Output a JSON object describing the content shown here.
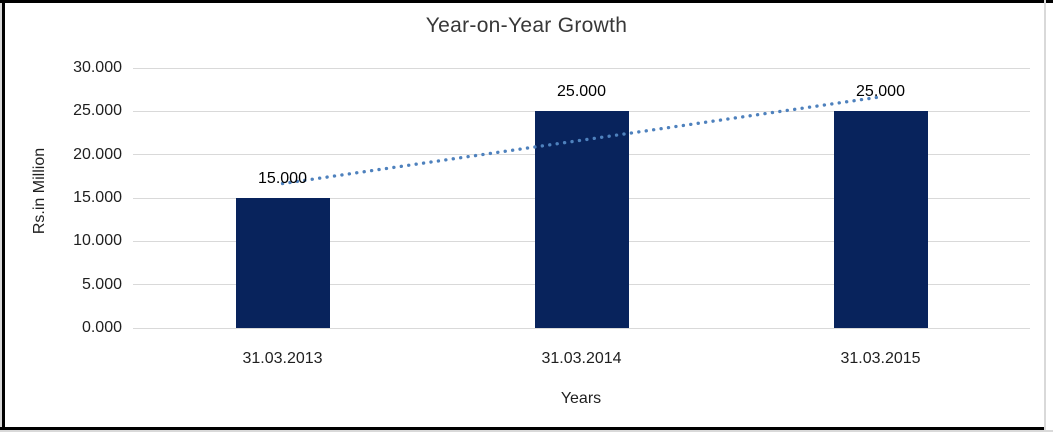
{
  "window": {
    "border_color": "#000000",
    "edge_color": "#d9d9d9",
    "background": "#ffffff"
  },
  "chart_data": {
    "type": "bar",
    "title": "Year-on-Year Growth",
    "xlabel": "Years",
    "ylabel": "Rs.in Million",
    "categories": [
      "31.03.2013",
      "31.03.2014",
      "31.03.2015"
    ],
    "values": [
      15000,
      25000,
      25000
    ],
    "data_labels": [
      "15.000",
      "25.000",
      "25.000"
    ],
    "y_tick_labels": [
      "0.000",
      "5.000",
      "10.000",
      "15.000",
      "20.000",
      "25.000",
      "30.000"
    ],
    "y_tick_values": [
      0,
      5000,
      10000,
      15000,
      20000,
      25000,
      30000
    ],
    "ylim": [
      0,
      30000
    ],
    "grid": true,
    "legend": "none",
    "bar_color": "#08235C",
    "gridline_color": "#D9D9D9",
    "trendline": {
      "type": "linear",
      "style": "dotted",
      "color": "#4E81BD",
      "start_value": 16667,
      "end_value": 26667
    }
  }
}
